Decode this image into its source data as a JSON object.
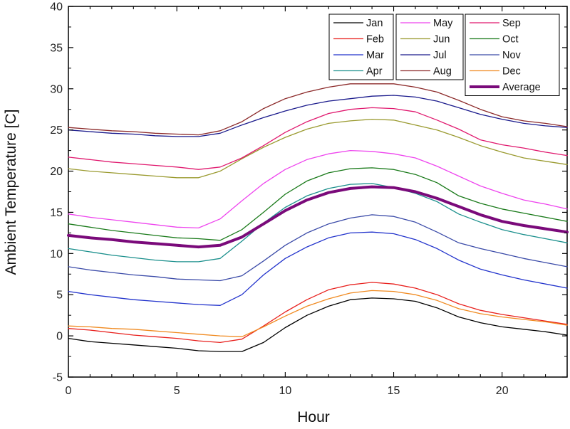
{
  "chart_data": {
    "type": "line",
    "title": "",
    "xlabel": "Hour",
    "ylabel": "Ambient Temperature [C]",
    "xlim": [
      0,
      23
    ],
    "ylim": [
      -5,
      40
    ],
    "xticks": [
      0,
      5,
      10,
      15,
      20
    ],
    "yticks": [
      -5,
      0,
      5,
      10,
      15,
      20,
      25,
      30,
      35,
      40
    ],
    "grid": false,
    "legend_position": "top-right",
    "x": [
      0,
      1,
      2,
      3,
      4,
      5,
      6,
      7,
      8,
      9,
      10,
      11,
      12,
      13,
      14,
      15,
      16,
      17,
      18,
      19,
      20,
      21,
      22,
      23
    ],
    "series": [
      {
        "name": "Jan",
        "color": "#000000",
        "width": 1.3,
        "values": [
          -0.3,
          -0.7,
          -0.9,
          -1.1,
          -1.3,
          -1.5,
          -1.8,
          -1.9,
          -1.9,
          -0.8,
          1.0,
          2.5,
          3.6,
          4.4,
          4.6,
          4.5,
          4.2,
          3.4,
          2.3,
          1.6,
          1.1,
          0.8,
          0.5,
          0.1
        ]
      },
      {
        "name": "Feb",
        "color": "#e8201d",
        "width": 1.3,
        "values": [
          0.9,
          0.7,
          0.4,
          0.1,
          -0.1,
          -0.3,
          -0.6,
          -0.8,
          -0.4,
          1.2,
          2.9,
          4.4,
          5.6,
          6.2,
          6.5,
          6.3,
          5.8,
          5.0,
          3.9,
          3.1,
          2.6,
          2.2,
          1.8,
          1.4
        ]
      },
      {
        "name": "Mar",
        "color": "#2233cc",
        "width": 1.3,
        "values": [
          5.4,
          5.0,
          4.7,
          4.4,
          4.2,
          4.0,
          3.8,
          3.7,
          5.0,
          7.4,
          9.4,
          10.8,
          11.9,
          12.5,
          12.6,
          12.4,
          11.7,
          10.6,
          9.2,
          8.1,
          7.4,
          6.8,
          6.3,
          5.8
        ]
      },
      {
        "name": "Apr",
        "color": "#1a8f8c",
        "width": 1.3,
        "values": [
          10.6,
          10.2,
          9.8,
          9.5,
          9.2,
          9.0,
          9.0,
          9.4,
          11.5,
          13.7,
          15.6,
          17.0,
          17.9,
          18.4,
          18.5,
          18.0,
          17.3,
          16.3,
          14.8,
          13.8,
          12.9,
          12.3,
          11.8,
          11.3
        ]
      },
      {
        "name": "May",
        "color": "#ee44ee",
        "width": 1.3,
        "values": [
          14.8,
          14.4,
          14.1,
          13.8,
          13.5,
          13.2,
          13.1,
          14.2,
          16.4,
          18.5,
          20.2,
          21.4,
          22.1,
          22.5,
          22.4,
          22.1,
          21.6,
          20.6,
          19.4,
          18.2,
          17.3,
          16.5,
          16.0,
          15.4
        ]
      },
      {
        "name": "Jun",
        "color": "#9a9a2f",
        "width": 1.3,
        "values": [
          20.3,
          20.0,
          19.8,
          19.6,
          19.4,
          19.2,
          19.2,
          20.0,
          21.5,
          22.9,
          24.1,
          25.1,
          25.8,
          26.1,
          26.3,
          26.2,
          25.6,
          25.0,
          24.1,
          23.1,
          22.3,
          21.6,
          21.2,
          20.8
        ]
      },
      {
        "name": "Jul",
        "color": "#1a1a8c",
        "width": 1.3,
        "values": [
          25.0,
          24.8,
          24.6,
          24.5,
          24.3,
          24.2,
          24.2,
          24.6,
          25.6,
          26.5,
          27.3,
          28.0,
          28.5,
          28.8,
          29.1,
          29.2,
          29.0,
          28.5,
          27.7,
          26.9,
          26.3,
          25.8,
          25.5,
          25.3
        ]
      },
      {
        "name": "Aug",
        "color": "#8c2a2a",
        "width": 1.3,
        "values": [
          25.3,
          25.1,
          24.9,
          24.8,
          24.6,
          24.5,
          24.4,
          24.9,
          26.0,
          27.6,
          28.8,
          29.6,
          30.2,
          30.6,
          30.6,
          30.6,
          30.2,
          29.6,
          28.6,
          27.5,
          26.6,
          26.1,
          25.8,
          25.4
        ]
      },
      {
        "name": "Sep",
        "color": "#e0186e",
        "width": 1.3,
        "values": [
          21.7,
          21.4,
          21.1,
          20.9,
          20.7,
          20.5,
          20.2,
          20.5,
          21.6,
          23.1,
          24.7,
          26.0,
          27.0,
          27.5,
          27.7,
          27.6,
          27.2,
          26.2,
          25.1,
          23.8,
          23.2,
          22.8,
          22.3,
          21.9
        ]
      },
      {
        "name": "Oct",
        "color": "#1a7a1a",
        "width": 1.3,
        "values": [
          13.6,
          13.2,
          12.8,
          12.5,
          12.2,
          11.9,
          11.8,
          11.6,
          12.9,
          15.0,
          17.2,
          18.8,
          19.8,
          20.3,
          20.4,
          20.2,
          19.6,
          18.6,
          17.0,
          16.1,
          15.4,
          14.9,
          14.4,
          13.9
        ]
      },
      {
        "name": "Nov",
        "color": "#3a4aa8",
        "width": 1.3,
        "values": [
          8.4,
          8.0,
          7.7,
          7.4,
          7.2,
          6.9,
          6.8,
          6.7,
          7.3,
          9.1,
          11.0,
          12.5,
          13.6,
          14.3,
          14.7,
          14.5,
          13.8,
          12.6,
          11.3,
          10.6,
          10.0,
          9.4,
          8.9,
          8.4
        ]
      },
      {
        "name": "Dec",
        "color": "#f08a20",
        "width": 1.3,
        "values": [
          1.2,
          1.1,
          0.9,
          0.8,
          0.6,
          0.4,
          0.2,
          0.0,
          -0.1,
          1.1,
          2.4,
          3.6,
          4.5,
          5.2,
          5.5,
          5.4,
          5.0,
          4.3,
          3.3,
          2.7,
          2.3,
          2.0,
          1.7,
          1.3
        ]
      },
      {
        "name": "Average",
        "color": "#7a0a7a",
        "width": 4,
        "values": [
          12.2,
          11.9,
          11.7,
          11.4,
          11.2,
          11.0,
          10.8,
          11.0,
          12.0,
          13.6,
          15.2,
          16.5,
          17.4,
          17.9,
          18.1,
          18.0,
          17.5,
          16.7,
          15.7,
          14.7,
          13.9,
          13.4,
          13.0,
          12.6
        ]
      }
    ]
  }
}
